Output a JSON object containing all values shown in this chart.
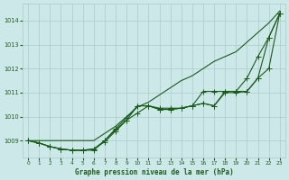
{
  "title": "Graphe pression niveau de la mer (hPa)",
  "bg_color": "#cce8e8",
  "grid_color": "#aacccc",
  "line_color": "#1a5c1a",
  "xlim": [
    -0.5,
    23.5
  ],
  "ylim": [
    1008.3,
    1014.7
  ],
  "yticks": [
    1009,
    1010,
    1011,
    1012,
    1013,
    1014
  ],
  "xticks": [
    0,
    1,
    2,
    3,
    4,
    5,
    6,
    7,
    8,
    9,
    10,
    11,
    12,
    13,
    14,
    15,
    16,
    17,
    18,
    19,
    20,
    21,
    22,
    23
  ],
  "s1": [
    1009.0,
    1009.0,
    1009.0,
    1009.0,
    1009.0,
    1009.0,
    1009.0,
    1009.3,
    1009.6,
    1010.0,
    1010.4,
    1010.6,
    1010.9,
    1011.2,
    1011.5,
    1011.7,
    1012.0,
    1012.3,
    1012.5,
    1012.7,
    1013.1,
    1013.5,
    1013.9,
    1014.4
  ],
  "s2": [
    1009.0,
    1008.9,
    1008.75,
    1008.65,
    1008.6,
    1008.6,
    1008.6,
    1009.0,
    1009.45,
    1009.85,
    1010.15,
    1010.45,
    1010.35,
    1010.35,
    1010.35,
    1010.45,
    1010.55,
    1010.45,
    1011.05,
    1011.05,
    1011.05,
    1011.6,
    1012.0,
    1014.3
  ],
  "s3": [
    1009.0,
    1008.9,
    1008.75,
    1008.65,
    1008.6,
    1008.6,
    1008.65,
    1009.0,
    1009.5,
    1009.95,
    1010.45,
    1010.45,
    1010.3,
    1010.3,
    1010.35,
    1010.45,
    1010.55,
    1010.45,
    1011.0,
    1011.0,
    1011.05,
    1011.6,
    1013.3,
    1014.3
  ],
  "s4": [
    1009.0,
    1008.9,
    1008.75,
    1008.65,
    1008.6,
    1008.6,
    1008.65,
    1008.95,
    1009.4,
    1009.85,
    1010.45,
    1010.45,
    1010.3,
    1010.3,
    1010.35,
    1010.45,
    1011.05,
    1011.05,
    1011.05,
    1011.05,
    1011.6,
    1012.5,
    1013.3,
    1014.3
  ]
}
